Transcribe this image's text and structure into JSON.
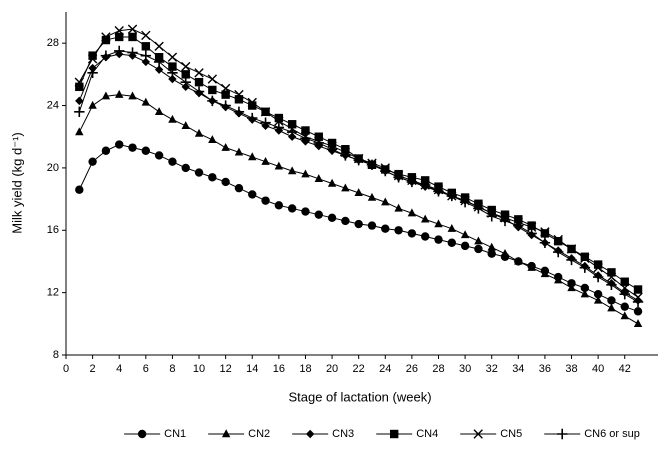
{
  "chart_data": {
    "type": "line",
    "x_label": "Stage of lactation (week)",
    "y_label": "Milk yield (kg d⁻¹)",
    "x": [
      1,
      2,
      3,
      4,
      5,
      6,
      7,
      8,
      9,
      10,
      11,
      12,
      13,
      14,
      15,
      16,
      17,
      18,
      19,
      20,
      21,
      22,
      23,
      24,
      25,
      26,
      27,
      28,
      29,
      30,
      31,
      32,
      33,
      34,
      35,
      36,
      37,
      38,
      39,
      40,
      41,
      42,
      43
    ],
    "xlim": [
      0,
      44.5
    ],
    "xticks": [
      0,
      2,
      4,
      6,
      8,
      10,
      12,
      14,
      16,
      18,
      20,
      22,
      24,
      26,
      28,
      30,
      32,
      34,
      36,
      38,
      40,
      42
    ],
    "ylim": [
      8,
      30
    ],
    "yticks": [
      8,
      12,
      16,
      20,
      24,
      28
    ],
    "grid": false,
    "legend": "bottom",
    "series": [
      {
        "name": "CN1",
        "color": "#000000",
        "marker": "circle",
        "values": [
          18.6,
          20.4,
          21.1,
          21.5,
          21.3,
          21.1,
          20.8,
          20.4,
          20.0,
          19.7,
          19.4,
          19.1,
          18.7,
          18.3,
          17.9,
          17.6,
          17.4,
          17.2,
          17.0,
          16.8,
          16.6,
          16.4,
          16.3,
          16.1,
          16.0,
          15.8,
          15.6,
          15.4,
          15.2,
          15.0,
          14.8,
          14.5,
          14.3,
          14.0,
          13.7,
          13.4,
          13.0,
          12.6,
          12.3,
          11.9,
          11.5,
          11.1,
          10.8
        ]
      },
      {
        "name": "CN2",
        "color": "#000000",
        "marker": "triangle",
        "values": [
          22.3,
          24.0,
          24.6,
          24.7,
          24.6,
          24.2,
          23.6,
          23.1,
          22.7,
          22.2,
          21.8,
          21.3,
          21.0,
          20.7,
          20.4,
          20.1,
          19.8,
          19.6,
          19.3,
          19.0,
          18.7,
          18.4,
          18.1,
          17.8,
          17.4,
          17.1,
          16.7,
          16.4,
          16.1,
          15.7,
          15.3,
          14.9,
          14.5,
          14.0,
          13.6,
          13.2,
          12.8,
          12.3,
          11.9,
          11.5,
          11.0,
          10.5,
          10.0
        ]
      },
      {
        "name": "CN3",
        "color": "#000000",
        "marker": "diamond",
        "values": [
          24.3,
          26.4,
          27.1,
          27.3,
          27.2,
          26.8,
          26.3,
          25.7,
          25.2,
          24.8,
          24.3,
          23.9,
          23.5,
          23.1,
          22.7,
          22.4,
          22.0,
          21.7,
          21.4,
          21.1,
          20.8,
          20.5,
          20.2,
          19.8,
          19.4,
          19.1,
          18.8,
          18.5,
          18.2,
          17.9,
          17.5,
          17.1,
          16.7,
          16.2,
          15.7,
          15.2,
          14.7,
          14.2,
          13.7,
          13.1,
          12.6,
          12.0,
          11.5
        ]
      },
      {
        "name": "CN4",
        "color": "#000000",
        "marker": "square",
        "values": [
          25.2,
          27.2,
          28.2,
          28.4,
          28.4,
          27.8,
          27.1,
          26.5,
          26.0,
          25.5,
          25.0,
          24.7,
          24.4,
          24.0,
          23.6,
          23.2,
          22.8,
          22.4,
          22.0,
          21.6,
          21.2,
          20.6,
          20.2,
          19.9,
          19.6,
          19.4,
          19.2,
          18.8,
          18.4,
          18.1,
          17.7,
          17.3,
          17.0,
          16.7,
          16.3,
          15.8,
          15.3,
          14.8,
          14.3,
          13.8,
          13.3,
          12.7,
          12.2
        ]
      },
      {
        "name": "CN5",
        "color": "#000000",
        "marker": "x",
        "values": [
          25.5,
          27.0,
          28.4,
          28.8,
          28.9,
          28.5,
          27.8,
          27.1,
          26.5,
          26.1,
          25.7,
          25.1,
          24.7,
          24.2,
          23.6,
          23.0,
          22.5,
          22.0,
          21.7,
          21.4,
          21.0,
          20.6,
          20.3,
          20.0,
          19.5,
          19.2,
          18.9,
          18.6,
          18.2,
          17.9,
          17.5,
          17.1,
          16.8,
          16.5,
          16.2,
          15.9,
          15.4,
          14.8,
          14.2,
          13.6,
          13.0,
          12.3,
          11.7
        ]
      },
      {
        "name": "CN6 or sup",
        "color": "#000000",
        "marker": "plus",
        "values": [
          23.6,
          26.1,
          27.2,
          27.5,
          27.4,
          27.2,
          26.8,
          26.1,
          25.5,
          24.9,
          24.3,
          24.0,
          23.6,
          23.2,
          22.9,
          22.6,
          22.3,
          21.9,
          21.6,
          21.2,
          20.8,
          20.5,
          20.2,
          19.8,
          19.4,
          19.1,
          18.9,
          18.5,
          18.2,
          17.8,
          17.4,
          16.9,
          16.6,
          16.3,
          15.8,
          15.2,
          14.6,
          14.1,
          13.6,
          13.0,
          12.5,
          11.9,
          11.4
        ]
      }
    ]
  }
}
